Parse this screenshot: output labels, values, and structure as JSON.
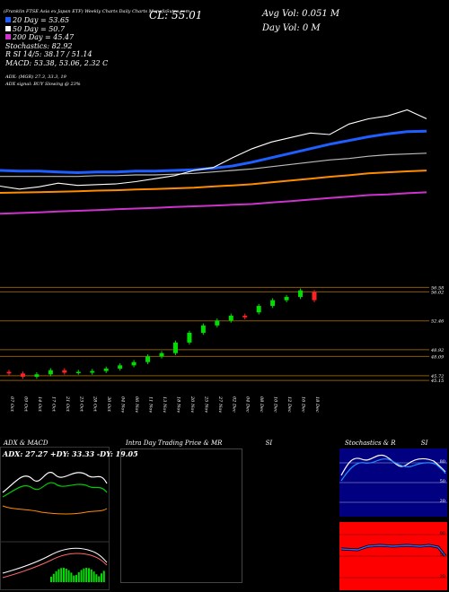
{
  "header": {
    "line1": "(Franklin FTSE Asia ex Japan ETF) Weekly Charts Daily Charts MunafaSutra.com",
    "ema_label": "EMA",
    "price": "CL: 55.01",
    "avg_vol": "Avg Vol: 0.051 M",
    "day_vol": "Day Vol: 0 M"
  },
  "indicator_text": {
    "ema20": "20 Day = 53.65",
    "ema50": "50 Day = 50.7",
    "ema200": "200 Day = 45.47",
    "stochastics": "Stochastics: 82.92",
    "si": "R SI 14/5: 38.17 / 51.14",
    "macd": "MACD: 53.38, 53.06, 2.32 C",
    "adx": "ADX: (MGR) 27.3, 33.3, 19",
    "adx_signal": "ADX signal: BUY Slowing @ 23%"
  },
  "colors": {
    "price_line": "#ffffff",
    "ema20": "#1f5fff",
    "ema50": "#bbbbbb",
    "ema100": "#ff8c00",
    "ema200": "#cc33cc",
    "candle_up": "#00dd00",
    "candle_down": "#ff2222",
    "level_line": "#8b5a00",
    "panel_blue": "#000080",
    "panel_red": "#ff0000"
  },
  "price_levels": [
    "56.58",
    "56.02",
    "52.46",
    "48.09",
    "45.72",
    "45.15",
    "48.92"
  ],
  "date_labels": [
    "07 Oct",
    "09 Oct",
    "14 Oct",
    "17 Oct",
    "21 Oct",
    "23 Oct",
    "28 Oct",
    "30 Oct",
    "04 Nov",
    "06 Nov",
    "11 Nov",
    "13 Nov",
    "18 Nov",
    "20 Nov",
    "25 Nov",
    "27 Nov",
    "02 Dec",
    "04 Dec",
    "08 Dec",
    "10 Dec",
    "12 Dec",
    "16 Dec",
    "18 Dec"
  ],
  "panels": {
    "adx_title": "ADX & MACD",
    "adx_readout": "ADX: 27.27 +DY: 33.33 -DY: 19.05",
    "intraday_title": "Intra Day Trading Price & MR",
    "intraday_si": "SI",
    "stoch_title": "Stochastics & R",
    "stoch_si": "SI",
    "stoch_ticks": [
      "80",
      "50",
      "20"
    ],
    "rsi_ticks": [
      "80",
      "50",
      "20"
    ]
  },
  "chart_data": [
    {
      "type": "line",
      "title": "EMA chart",
      "series": [
        {
          "name": "20 Day",
          "values": [
            48.4,
            48.3,
            48.3,
            48.2,
            48.1,
            48.2,
            48.2,
            48.3,
            48.3,
            48.4,
            48.5,
            48.7,
            49.0,
            49.5,
            50.1,
            50.7,
            51.3,
            51.9,
            52.4,
            52.9,
            53.3,
            53.6,
            53.65
          ]
        },
        {
          "name": "50 Day",
          "values": [
            47.6,
            47.6,
            47.6,
            47.6,
            47.6,
            47.7,
            47.7,
            47.8,
            47.8,
            47.9,
            48.0,
            48.2,
            48.4,
            48.6,
            48.9,
            49.2,
            49.5,
            49.8,
            50.0,
            50.3,
            50.5,
            50.6,
            50.7
          ]
        },
        {
          "name": "200 Day",
          "values": [
            42.6,
            42.7,
            42.8,
            42.9,
            43.0,
            43.1,
            43.2,
            43.3,
            43.4,
            43.5,
            43.6,
            43.7,
            43.8,
            43.9,
            44.1,
            44.3,
            44.5,
            44.7,
            44.9,
            45.1,
            45.2,
            45.35,
            45.47
          ]
        }
      ],
      "ylim": [
        40,
        58
      ]
    },
    {
      "type": "candlestick",
      "title": "",
      "x": [
        "07 Oct",
        "09 Oct",
        "14 Oct",
        "17 Oct",
        "21 Oct",
        "23 Oct",
        "28 Oct",
        "30 Oct",
        "04 Nov",
        "06 Nov",
        "11 Nov",
        "13 Nov",
        "18 Nov",
        "20 Nov",
        "25 Nov",
        "27 Nov",
        "02 Dec",
        "04 Dec",
        "08 Dec",
        "10 Dec",
        "12 Dec",
        "16 Dec",
        "18 Dec"
      ],
      "open": [
        46.2,
        46.0,
        45.6,
        45.9,
        46.4,
        46.1,
        46.1,
        46.3,
        46.6,
        47.0,
        47.4,
        48.1,
        48.5,
        49.8,
        51.0,
        51.9,
        52.5,
        53.1,
        53.5,
        54.3,
        55.0,
        55.4,
        56.0
      ],
      "close": [
        46.0,
        45.6,
        45.9,
        46.4,
        46.1,
        46.2,
        46.3,
        46.6,
        47.0,
        47.4,
        48.1,
        48.5,
        49.8,
        51.0,
        51.9,
        52.5,
        53.1,
        52.9,
        54.3,
        55.0,
        55.4,
        56.2,
        55.01
      ],
      "ylim": [
        44.5,
        57.5
      ]
    }
  ]
}
